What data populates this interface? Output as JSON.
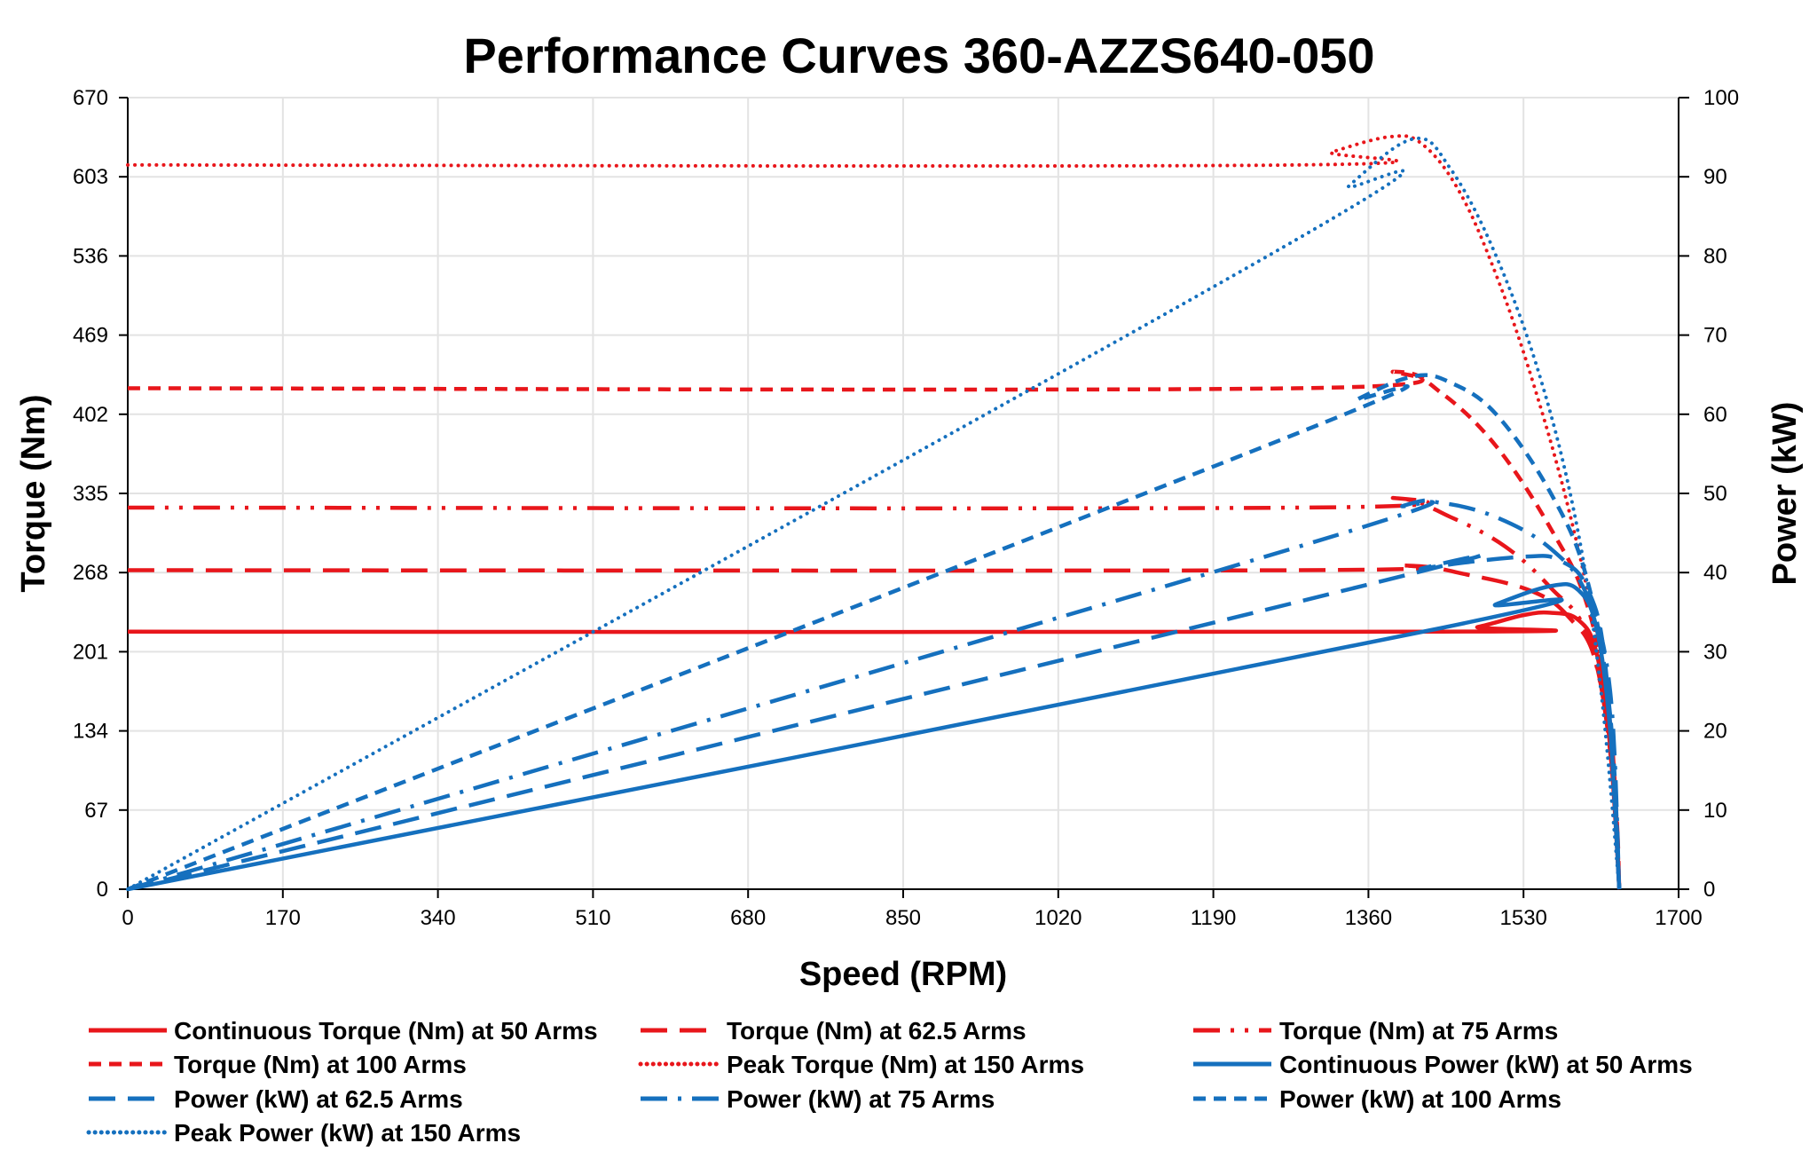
{
  "chart_data": {
    "type": "line",
    "title": "Performance Curves 360-AZZS640-050",
    "xlabel": "Speed (RPM)",
    "ylabel": "Torque (Nm)",
    "y2label": "Power (kW)",
    "xlim": [
      0,
      1700
    ],
    "ylim": [
      0,
      670
    ],
    "y2lim": [
      0,
      100
    ],
    "xticks": [
      0,
      170,
      340,
      510,
      680,
      850,
      1020,
      1190,
      1360,
      1530,
      1700
    ],
    "yticks": [
      0,
      67,
      134,
      201,
      268,
      335,
      402,
      469,
      536,
      603,
      670
    ],
    "y2ticks": [
      0,
      10,
      20,
      30,
      40,
      50,
      60,
      70,
      80,
      90,
      100
    ],
    "grid": true,
    "legend_position": "bottom",
    "colors": {
      "torque": "#e8161b",
      "power": "#1570be"
    },
    "series": [
      {
        "name": "Continuous Torque (Nm) at 50 Arms",
        "axis": "left",
        "color": "#e8161b",
        "style": "solid",
        "points": [
          [
            0,
            218
          ],
          [
            1440,
            218
          ],
          [
            1480,
            222
          ],
          [
            1530,
            232
          ],
          [
            1560,
            234
          ],
          [
            1590,
            228
          ],
          [
            1610,
            200
          ],
          [
            1625,
            120
          ],
          [
            1635,
            0
          ]
        ]
      },
      {
        "name": "Torque (Nm) at 62.5 Arms",
        "axis": "left",
        "color": "#e8161b",
        "style": "long-dash",
        "points": [
          [
            0,
            270
          ],
          [
            1280,
            270
          ],
          [
            1400,
            274
          ],
          [
            1470,
            266
          ],
          [
            1540,
            252
          ],
          [
            1580,
            230
          ],
          [
            1610,
            190
          ],
          [
            1630,
            80
          ],
          [
            1635,
            0
          ]
        ]
      },
      {
        "name": "Torque (Nm) at 75 Arms",
        "axis": "left",
        "color": "#e8161b",
        "style": "dash-dot-dot",
        "points": [
          [
            0,
            323
          ],
          [
            1290,
            323
          ],
          [
            1390,
            331
          ],
          [
            1450,
            315
          ],
          [
            1510,
            290
          ],
          [
            1560,
            255
          ],
          [
            1600,
            215
          ],
          [
            1625,
            120
          ],
          [
            1635,
            0
          ]
        ]
      },
      {
        "name": "Torque (Nm) at 100 Arms",
        "axis": "left",
        "color": "#e8161b",
        "style": "dash",
        "points": [
          [
            0,
            424
          ],
          [
            1280,
            424
          ],
          [
            1390,
            438
          ],
          [
            1440,
            420
          ],
          [
            1500,
            375
          ],
          [
            1560,
            305
          ],
          [
            1600,
            240
          ],
          [
            1625,
            140
          ],
          [
            1635,
            0
          ]
        ]
      },
      {
        "name": "Peak  Torque (Nm) at 150 Arms",
        "axis": "left",
        "color": "#e8161b",
        "style": "dot",
        "points": [
          [
            0,
            613
          ],
          [
            1280,
            613
          ],
          [
            1320,
            624
          ],
          [
            1385,
            637
          ],
          [
            1420,
            630
          ],
          [
            1460,
            590
          ],
          [
            1500,
            520
          ],
          [
            1540,
            430
          ],
          [
            1580,
            320
          ],
          [
            1610,
            210
          ],
          [
            1630,
            80
          ],
          [
            1635,
            0
          ]
        ]
      },
      {
        "name": "Continuous Power (kW) at 50 Arms",
        "axis": "right",
        "color": "#1570be",
        "style": "solid",
        "points": [
          [
            0,
            0
          ],
          [
            1440,
            33
          ],
          [
            1500,
            36
          ],
          [
            1560,
            38.3
          ],
          [
            1590,
            37.8
          ],
          [
            1610,
            33
          ],
          [
            1625,
            20
          ],
          [
            1635,
            0
          ]
        ]
      },
      {
        "name": "Power (kW) at 62.5 Arms",
        "axis": "right",
        "color": "#1570be",
        "style": "long-dash",
        "points": [
          [
            0,
            0
          ],
          [
            1360,
            38.5
          ],
          [
            1420,
            40.5
          ],
          [
            1530,
            42
          ],
          [
            1570,
            41.5
          ],
          [
            1600,
            38
          ],
          [
            1620,
            28
          ],
          [
            1635,
            0
          ]
        ]
      },
      {
        "name": "Power (kW) at 75 Arms",
        "axis": "right",
        "color": "#1570be",
        "style": "dash-dot",
        "points": [
          [
            0,
            0
          ],
          [
            1290,
            43.5
          ],
          [
            1400,
            48.5
          ],
          [
            1440,
            48.8
          ],
          [
            1500,
            47
          ],
          [
            1560,
            43
          ],
          [
            1600,
            37
          ],
          [
            1625,
            25
          ],
          [
            1635,
            0
          ]
        ]
      },
      {
        "name": "Power (kW) at 100 Arms",
        "axis": "right",
        "color": "#1570be",
        "style": "dash",
        "points": [
          [
            0,
            0
          ],
          [
            1280,
            57.5
          ],
          [
            1350,
            62
          ],
          [
            1410,
            64.8
          ],
          [
            1450,
            64
          ],
          [
            1500,
            60
          ],
          [
            1560,
            50
          ],
          [
            1600,
            39
          ],
          [
            1625,
            22
          ],
          [
            1635,
            0
          ]
        ]
      },
      {
        "name": "Peak Power (kW) at 150 Arms",
        "axis": "right",
        "color": "#1570be",
        "style": "dot",
        "points": [
          [
            0,
            0
          ],
          [
            1280,
            82
          ],
          [
            1340,
            89
          ],
          [
            1410,
            94.8
          ],
          [
            1450,
            91
          ],
          [
            1500,
            80
          ],
          [
            1550,
            64
          ],
          [
            1590,
            45
          ],
          [
            1615,
            25
          ],
          [
            1635,
            0
          ]
        ]
      }
    ]
  }
}
